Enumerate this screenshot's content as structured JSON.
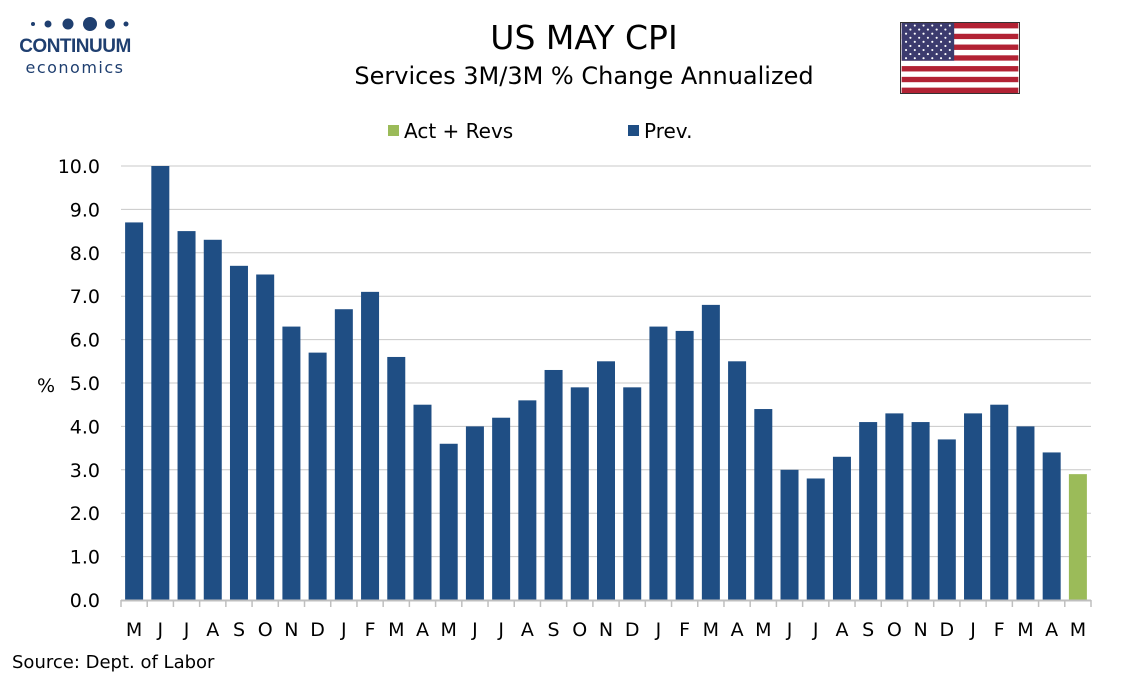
{
  "header": {
    "logo_name": "CONTINUUM",
    "logo_sub": "economics",
    "logo_color": "#1f3f70",
    "title": "US MAY CPI",
    "subtitle": "Services 3M/3M % Change Annualized",
    "flag_icon": "us-flag-icon"
  },
  "footer": {
    "source": "Source: Dept. of Labor"
  },
  "chart_data": {
    "type": "bar",
    "title": "US MAY CPI",
    "subtitle": "Services 3M/3M % Change Annualized",
    "xlabel": "",
    "ylabel": "%",
    "ylim": [
      0,
      10
    ],
    "yticks": [
      "0.0",
      "1.0",
      "2.0",
      "3.0",
      "4.0",
      "5.0",
      "6.0",
      "7.0",
      "8.0",
      "9.0",
      "10.0"
    ],
    "grid": true,
    "legend_position": "top",
    "categories": [
      "M",
      "J",
      "J",
      "A",
      "S",
      "O",
      "N",
      "D",
      "J",
      "F",
      "M",
      "A",
      "M",
      "J",
      "J",
      "A",
      "S",
      "O",
      "N",
      "D",
      "J",
      "F",
      "M",
      "A",
      "M",
      "J",
      "J",
      "A",
      "S",
      "O",
      "N",
      "D",
      "J",
      "F",
      "M",
      "A",
      "M"
    ],
    "values": [
      8.7,
      10.0,
      8.5,
      8.3,
      7.7,
      7.5,
      6.3,
      5.7,
      6.7,
      7.1,
      5.6,
      4.5,
      3.6,
      4.0,
      4.2,
      4.6,
      5.3,
      4.9,
      5.5,
      4.9,
      6.3,
      6.2,
      6.8,
      5.5,
      4.4,
      3.0,
      2.8,
      3.3,
      4.1,
      4.3,
      4.1,
      3.7,
      4.3,
      4.5,
      4.0,
      3.4,
      2.9
    ],
    "series": [
      {
        "name": "Act + Revs",
        "color": "#9bbb59",
        "indices": [
          36
        ]
      },
      {
        "name": "Prev.",
        "color": "#1f4e84",
        "indices": [
          0,
          1,
          2,
          3,
          4,
          5,
          6,
          7,
          8,
          9,
          10,
          11,
          12,
          13,
          14,
          15,
          16,
          17,
          18,
          19,
          20,
          21,
          22,
          23,
          24,
          25,
          26,
          27,
          28,
          29,
          30,
          31,
          32,
          33,
          34,
          35
        ]
      }
    ]
  }
}
